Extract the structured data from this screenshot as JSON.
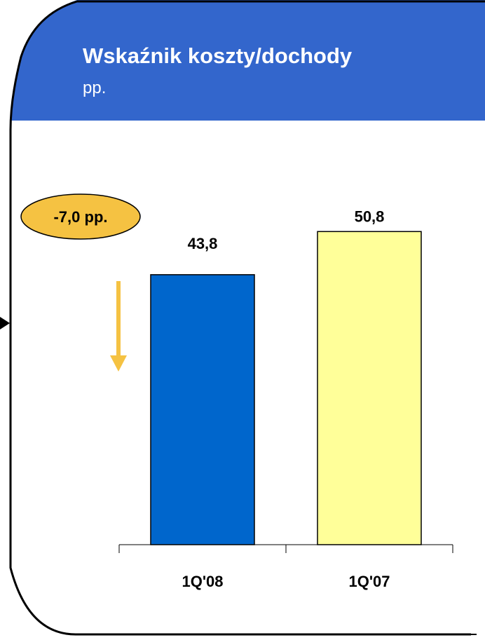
{
  "chart_data": {
    "type": "bar",
    "title": "Wskaźnik koszty/dochody",
    "subtitle": "pp.",
    "categories": [
      "1Q'08",
      "1Q'07"
    ],
    "values": [
      43.8,
      50.8
    ],
    "value_labels": [
      "43,8",
      "50,8"
    ],
    "bar_colors": [
      "#0066CC",
      "#FFFF99"
    ],
    "ylim": [
      0,
      58
    ],
    "grid": false,
    "xlabel": "",
    "ylabel": "",
    "annotation": {
      "text": "-7,0 pp.",
      "fill": "#F5C242"
    },
    "arrow_color": "#F5C242"
  },
  "colors": {
    "header": "#3366CC",
    "panel_border": "#000000"
  }
}
